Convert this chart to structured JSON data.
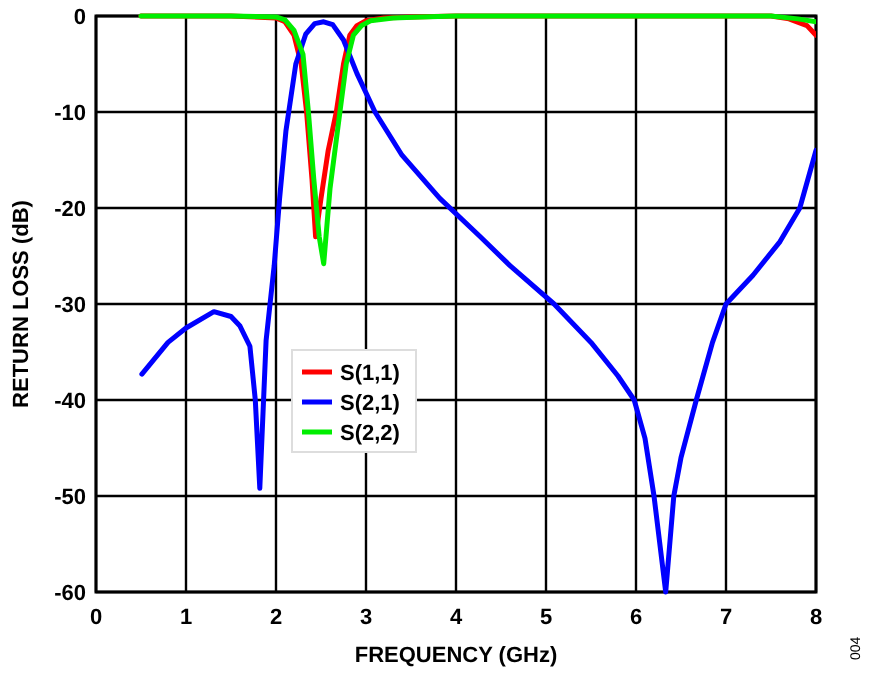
{
  "chart_data": {
    "type": "line",
    "xlabel": "FREQUENCY (GHz)",
    "ylabel": "RETURN LOSS (dB)",
    "xlim": [
      0,
      8
    ],
    "ylim": [
      -60,
      0
    ],
    "xticks": [
      0,
      1,
      2,
      3,
      4,
      5,
      6,
      7,
      8
    ],
    "yticks": [
      0,
      -10,
      -20,
      -30,
      -40,
      -50,
      -60
    ],
    "grid": true,
    "legend": "left",
    "marker": "none",
    "line_style": "solid",
    "annotations": [
      "004"
    ],
    "series": [
      {
        "name": "S(1,1)",
        "color": "#ff0000",
        "x": [
          0.5,
          1,
          1.5,
          2,
          2.1,
          2.2,
          2.28,
          2.34,
          2.4,
          2.44,
          2.5,
          2.58,
          2.67,
          2.75,
          2.82,
          2.9,
          3,
          3.2,
          3.5,
          4,
          5,
          6,
          7,
          7.5,
          7.7,
          7.9,
          8
        ],
        "values": [
          0,
          0,
          0,
          -0.2,
          -0.6,
          -2,
          -5,
          -10,
          -17,
          -23,
          -19,
          -14,
          -10,
          -5,
          -2,
          -1,
          -0.5,
          -0.2,
          -0.1,
          0,
          0,
          0,
          0,
          0,
          -0.3,
          -1,
          -2
        ]
      },
      {
        "name": "S(2,1)",
        "color": "#0000ff",
        "x": [
          0.51,
          0.8,
          1.0,
          1.31,
          1.5,
          1.6,
          1.71,
          1.77,
          1.82,
          1.89,
          1.98,
          2.04,
          2.11,
          2.22,
          2.33,
          2.43,
          2.53,
          2.63,
          2.75,
          2.9,
          3.1,
          3.4,
          3.82,
          4.27,
          4.6,
          5.09,
          5.5,
          5.8,
          5.98,
          6.1,
          6.2,
          6.33,
          6.42,
          6.5,
          6.67,
          6.85,
          7.0,
          7.3,
          7.6,
          7.82,
          8
        ],
        "values": [
          -37.3,
          -34,
          -32.5,
          -30.8,
          -31.3,
          -32.3,
          -34.4,
          -40,
          -49.2,
          -33.8,
          -26,
          -19,
          -12,
          -5,
          -1.9,
          -0.8,
          -0.6,
          -0.9,
          -2.5,
          -6,
          -10,
          -14.5,
          -19,
          -23,
          -26,
          -30,
          -34,
          -37.5,
          -40,
          -44,
          -50,
          -60,
          -50,
          -46,
          -40,
          -34,
          -30,
          -27,
          -23.5,
          -20,
          -14
        ]
      },
      {
        "name": "S(2,2)",
        "color": "#00ee00",
        "x": [
          0.5,
          1,
          1.5,
          2,
          2.1,
          2.2,
          2.3,
          2.36,
          2.42,
          2.48,
          2.53,
          2.6,
          2.71,
          2.78,
          2.86,
          2.95,
          3.05,
          3.3,
          3.6,
          4,
          5,
          6,
          7,
          7.5,
          7.8,
          8
        ],
        "values": [
          0,
          0,
          0,
          -0.1,
          -0.4,
          -1.5,
          -4,
          -10,
          -17,
          -23,
          -25.8,
          -18,
          -10,
          -5,
          -2,
          -1,
          -0.5,
          -0.2,
          -0.1,
          0,
          0,
          0,
          0,
          0,
          -0.3,
          -0.6
        ]
      }
    ]
  }
}
